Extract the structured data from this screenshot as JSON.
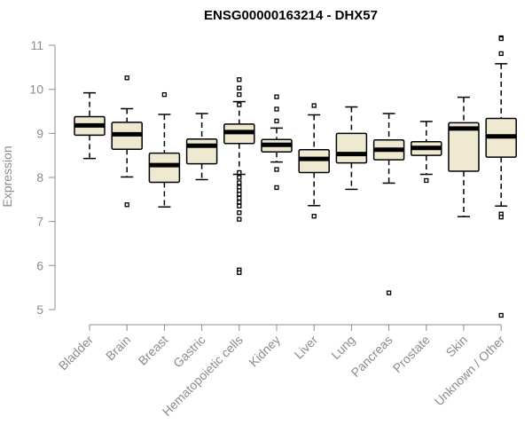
{
  "chart_data": {
    "type": "boxplot",
    "title": "ENSG00000163214 - DHX57",
    "xlabel": "",
    "ylabel": "Expression",
    "ylim": [
      4.7,
      11.2
    ],
    "yticks": [
      5,
      6,
      7,
      8,
      9,
      10,
      11
    ],
    "grid": false,
    "categories": [
      "Bladder",
      "Brain",
      "Breast",
      "Gastric",
      "Hematopoietic cells",
      "Kidney",
      "Liver",
      "Lung",
      "Pancreas",
      "Prostate",
      "Skin",
      "Unknown / Other"
    ],
    "boxes": [
      {
        "whisker_low": 8.43,
        "q1": 8.96,
        "median": 9.18,
        "q3": 9.38,
        "whisker_high": 9.92,
        "outliers": []
      },
      {
        "whisker_low": 8.01,
        "q1": 8.64,
        "median": 8.98,
        "q3": 9.25,
        "whisker_high": 9.56,
        "outliers": [
          10.26,
          7.38
        ]
      },
      {
        "whisker_low": 7.33,
        "q1": 7.89,
        "median": 8.28,
        "q3": 8.55,
        "whisker_high": 9.43,
        "outliers": [
          9.88
        ]
      },
      {
        "whisker_low": 7.95,
        "q1": 8.31,
        "median": 8.72,
        "q3": 8.87,
        "whisker_high": 9.45,
        "outliers": []
      },
      {
        "whisker_low": 8.07,
        "q1": 8.77,
        "median": 9.03,
        "q3": 9.21,
        "whisker_high": 9.72,
        "outliers": [
          10.22,
          10.03,
          9.88,
          9.65,
          8.11,
          8.0,
          7.88,
          7.78,
          7.7,
          7.62,
          7.53,
          7.44,
          7.35,
          7.2,
          7.05,
          5.9,
          5.84
        ]
      },
      {
        "whisker_low": 8.35,
        "q1": 8.58,
        "median": 8.74,
        "q3": 8.86,
        "whisker_high": 9.12,
        "outliers": [
          9.83,
          9.55,
          9.28,
          8.18,
          7.77
        ]
      },
      {
        "whisker_low": 7.36,
        "q1": 8.11,
        "median": 8.42,
        "q3": 8.63,
        "whisker_high": 9.42,
        "outliers": [
          9.63,
          7.12
        ]
      },
      {
        "whisker_low": 7.73,
        "q1": 8.33,
        "median": 8.53,
        "q3": 9.0,
        "whisker_high": 9.6,
        "outliers": []
      },
      {
        "whisker_low": 7.87,
        "q1": 8.4,
        "median": 8.63,
        "q3": 8.85,
        "whisker_high": 9.45,
        "outliers": [
          5.38
        ]
      },
      {
        "whisker_low": 8.07,
        "q1": 8.5,
        "median": 8.67,
        "q3": 8.81,
        "whisker_high": 9.27,
        "outliers": [
          7.93
        ]
      },
      {
        "whisker_low": 7.11,
        "q1": 8.14,
        "median": 9.11,
        "q3": 9.24,
        "whisker_high": 9.82,
        "outliers": []
      },
      {
        "whisker_low": 7.35,
        "q1": 8.46,
        "median": 8.93,
        "q3": 9.34,
        "whisker_high": 10.58,
        "outliers": [
          11.17,
          11.15,
          10.81,
          7.17,
          7.1,
          4.87
        ]
      }
    ]
  },
  "colors": {
    "box_fill": "#efe9d2",
    "stroke": "#000000",
    "axis": "#8c8c8c",
    "title": "#000000"
  }
}
